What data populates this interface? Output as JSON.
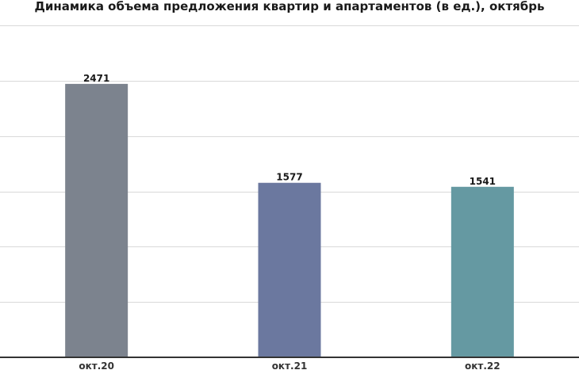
{
  "chart_data": {
    "type": "bar",
    "title": "Динамика объема предложения квартир и апартаментов (в ед.), октябрь",
    "xlabel": "",
    "ylabel": "",
    "categories": [
      "окт.20",
      "окт.21",
      "окт.22"
    ],
    "values": [
      2471,
      1577,
      1541
    ],
    "ylim": [
      0,
      3000
    ],
    "grid": true,
    "colors": [
      "#7c838e",
      "#6b789f",
      "#6599a2"
    ]
  }
}
